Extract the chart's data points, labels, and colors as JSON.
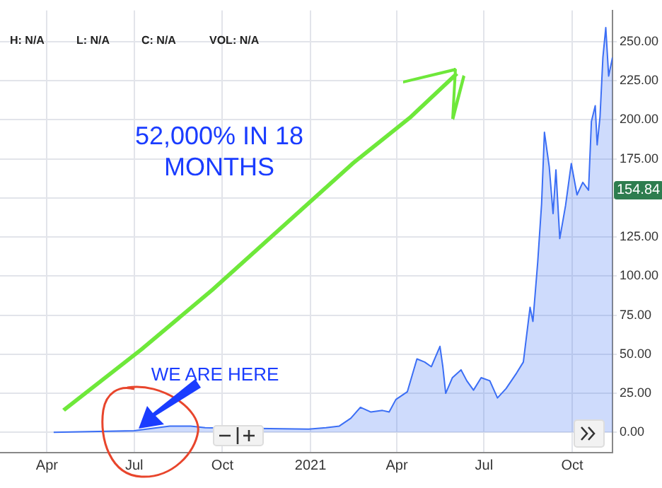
{
  "chart_data": {
    "type": "area",
    "x": [
      "2020-04-08",
      "2020-07-01",
      "2020-08-07",
      "2020-08-29",
      "2020-09-13",
      "2020-12-30",
      "2021-01-17",
      "2021-01-31",
      "2021-02-12",
      "2021-02-22",
      "2021-03-05",
      "2021-03-17",
      "2021-03-24",
      "2021-03-31",
      "2021-04-12",
      "2021-04-22",
      "2021-04-30",
      "2021-05-07",
      "2021-05-16",
      "2021-05-19",
      "2021-05-22",
      "2021-05-29",
      "2021-06-07",
      "2021-06-13",
      "2021-06-20",
      "2021-06-28",
      "2021-07-07",
      "2021-07-15",
      "2021-07-24",
      "2021-08-04",
      "2021-08-11",
      "2021-08-14",
      "2021-08-18",
      "2021-08-21",
      "2021-08-26",
      "2021-08-30",
      "2021-09-02",
      "2021-09-07",
      "2021-09-11",
      "2021-09-14",
      "2021-09-18",
      "2021-09-24",
      "2021-09-30",
      "2021-10-06",
      "2021-10-12",
      "2021-10-18",
      "2021-10-21",
      "2021-10-25",
      "2021-10-27",
      "2021-10-30",
      "2021-11-02",
      "2021-11-05",
      "2021-11-08",
      "2021-11-12"
    ],
    "series": [
      {
        "color": "#3b6ef5",
        "values": [
          0,
          1,
          4,
          4,
          3,
          2,
          3,
          4,
          9,
          16,
          13,
          14,
          13,
          21,
          26,
          47,
          45,
          42,
          55,
          42,
          25,
          35,
          40,
          33,
          27,
          35,
          33,
          22,
          28,
          38,
          45,
          60,
          80,
          71,
          109,
          146,
          192,
          170,
          140,
          168,
          124,
          145,
          172,
          152,
          160,
          155,
          199,
          209,
          184,
          202,
          240,
          259,
          228,
          240
        ]
      }
    ],
    "xlim": [
      "2020-02-12",
      "2021-11-12"
    ],
    "xticks": [
      {
        "value": "2020-04-01",
        "label": "Apr"
      },
      {
        "value": "2020-07-01",
        "label": "Jul"
      },
      {
        "value": "2020-10-01",
        "label": "Oct"
      },
      {
        "value": "2021-01-01",
        "label": "2021"
      },
      {
        "value": "2021-04-01",
        "label": "Apr"
      },
      {
        "value": "2021-07-01",
        "label": "Jul"
      },
      {
        "value": "2021-10-01",
        "label": "Oct"
      }
    ],
    "ylim": [
      -13,
      270
    ],
    "yticks": [
      {
        "value": 0,
        "label": "0.00"
      },
      {
        "value": 25,
        "label": "25.00"
      },
      {
        "value": 50,
        "label": "50.00"
      },
      {
        "value": 75,
        "label": "75.00"
      },
      {
        "value": 100,
        "label": "100.00"
      },
      {
        "value": 125,
        "label": "125.00"
      },
      {
        "value": 150,
        "label": null
      },
      {
        "value": 175,
        "label": "175.00"
      },
      {
        "value": 200,
        "label": "200.00"
      },
      {
        "value": 225,
        "label": "225.00"
      },
      {
        "value": 250,
        "label": "250.00"
      }
    ],
    "grid": true,
    "legend": false,
    "marker": "none",
    "annotations": [
      "H: N/A",
      "L: N/A",
      "C: N/A",
      "VOL: N/A",
      "52,000% IN 18 MONTHS",
      {
        "text": "WE ARE HERE",
        "x": "2020-07-01",
        "y": 1
      },
      {
        "text": "154.84",
        "y": 154.84
      }
    ]
  }
}
